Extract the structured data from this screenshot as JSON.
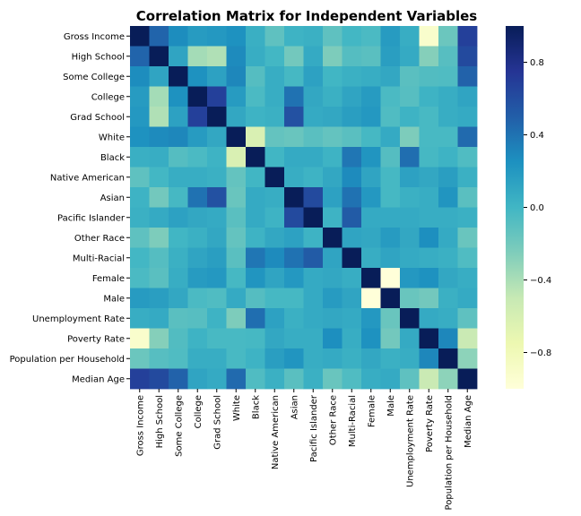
{
  "chart_data": {
    "type": "heatmap",
    "title": "Correlation Matrix for Independent Variables",
    "xlabel": "",
    "ylabel": "",
    "labels": [
      "Gross Income",
      "High School",
      "Some College",
      "College",
      "Grad School",
      "White",
      "Black",
      "Native American",
      "Asian",
      "Pacific Islander",
      "Other Race",
      "Multi-Racial",
      "Female",
      "Male",
      "Unemployment Rate",
      "Poverty Rate",
      "Population per Household",
      "Median Age"
    ],
    "matrix": [
      [
        1.0,
        0.47,
        0.27,
        0.18,
        0.2,
        0.24,
        0.05,
        -0.12,
        0.02,
        0.04,
        -0.12,
        -0.01,
        -0.04,
        0.18,
        0.06,
        -0.92,
        -0.17,
        0.68
      ],
      [
        0.47,
        1.0,
        0.12,
        -0.38,
        -0.42,
        0.28,
        0.06,
        -0.01,
        -0.2,
        0.08,
        -0.24,
        -0.08,
        -0.1,
        0.16,
        0.08,
        -0.27,
        -0.09,
        0.62
      ],
      [
        0.27,
        0.12,
        1.0,
        0.24,
        0.14,
        0.3,
        -0.08,
        0.06,
        -0.02,
        0.14,
        0.0,
        0.04,
        0.06,
        0.1,
        -0.1,
        -0.07,
        -0.06,
        0.48
      ],
      [
        0.18,
        -0.38,
        0.24,
        1.0,
        0.68,
        0.18,
        -0.04,
        0.06,
        0.4,
        0.1,
        0.04,
        0.12,
        0.18,
        -0.04,
        -0.09,
        0.02,
        0.06,
        0.12
      ],
      [
        0.2,
        -0.42,
        0.14,
        0.68,
        1.0,
        0.1,
        0.02,
        0.04,
        0.58,
        0.08,
        0.1,
        0.16,
        0.2,
        -0.06,
        0.02,
        -0.03,
        0.06,
        0.08
      ],
      [
        0.24,
        0.28,
        0.3,
        0.18,
        0.1,
        1.0,
        -0.62,
        -0.14,
        -0.16,
        -0.1,
        -0.14,
        -0.1,
        -0.02,
        0.08,
        -0.24,
        -0.03,
        -0.03,
        0.44
      ],
      [
        0.05,
        0.06,
        -0.08,
        -0.04,
        0.02,
        -0.62,
        1.0,
        0.0,
        0.08,
        0.08,
        0.02,
        0.38,
        0.22,
        -0.08,
        0.42,
        -0.02,
        0.02,
        -0.06
      ],
      [
        -0.12,
        -0.01,
        0.06,
        0.06,
        0.04,
        -0.14,
        0.0,
        1.0,
        0.06,
        0.02,
        0.1,
        0.28,
        0.12,
        -0.02,
        0.14,
        0.1,
        0.16,
        0.04
      ],
      [
        0.02,
        -0.2,
        -0.02,
        0.4,
        0.58,
        -0.16,
        0.08,
        0.06,
        1.0,
        0.62,
        0.14,
        0.4,
        0.2,
        -0.02,
        0.04,
        0.06,
        0.22,
        -0.1
      ],
      [
        0.04,
        0.08,
        0.14,
        0.1,
        0.08,
        -0.1,
        0.08,
        0.02,
        0.62,
        1.0,
        0.02,
        0.52,
        0.08,
        0.08,
        0.08,
        0.06,
        0.06,
        0.04
      ],
      [
        -0.12,
        -0.24,
        0.0,
        0.04,
        0.1,
        -0.14,
        0.02,
        0.1,
        0.14,
        0.02,
        1.0,
        0.12,
        0.1,
        0.18,
        0.1,
        0.26,
        0.08,
        -0.16
      ],
      [
        -0.01,
        -0.08,
        0.04,
        0.12,
        0.16,
        -0.1,
        0.38,
        0.28,
        0.4,
        0.52,
        0.12,
        1.0,
        0.06,
        0.12,
        0.08,
        0.06,
        0.04,
        -0.06
      ],
      [
        -0.04,
        -0.1,
        0.06,
        0.18,
        0.2,
        -0.02,
        0.22,
        0.12,
        0.2,
        0.08,
        0.1,
        0.06,
        1.0,
        -1.0,
        0.2,
        0.24,
        0.1,
        0.06
      ],
      [
        0.18,
        0.16,
        0.1,
        -0.04,
        -0.06,
        0.08,
        -0.08,
        -0.02,
        -0.02,
        0.08,
        0.18,
        0.12,
        -1.0,
        1.0,
        -0.16,
        -0.2,
        0.04,
        0.08
      ],
      [
        0.06,
        0.08,
        -0.1,
        -0.09,
        0.02,
        -0.24,
        0.42,
        0.14,
        0.04,
        0.08,
        0.1,
        0.08,
        0.2,
        -0.16,
        1.0,
        0.08,
        0.06,
        -0.12
      ],
      [
        -0.92,
        -0.27,
        -0.07,
        0.02,
        -0.03,
        -0.03,
        -0.02,
        0.1,
        0.06,
        0.06,
        0.26,
        0.06,
        0.24,
        -0.2,
        0.08,
        1.0,
        0.3,
        -0.52
      ],
      [
        -0.17,
        -0.09,
        -0.06,
        0.06,
        0.06,
        -0.03,
        0.02,
        0.16,
        0.22,
        0.06,
        0.08,
        0.04,
        0.1,
        0.04,
        0.06,
        0.3,
        1.0,
        -0.3
      ],
      [
        0.68,
        0.62,
        0.48,
        0.12,
        0.08,
        0.44,
        -0.06,
        0.04,
        -0.1,
        0.04,
        -0.16,
        -0.06,
        0.06,
        0.08,
        -0.12,
        -0.52,
        -0.3,
        1.0
      ]
    ],
    "vmin": -1.0,
    "vmax": 1.0,
    "colormap": "YlGnBu",
    "colorbar_ticks": [
      0.8,
      0.4,
      0.0,
      -0.4,
      -0.8
    ],
    "colorbar_tick_labels": [
      "0.8",
      "0.4",
      "0.0",
      "−0.4",
      "−0.8"
    ],
    "grid": false,
    "legend": "colorbar-right"
  }
}
